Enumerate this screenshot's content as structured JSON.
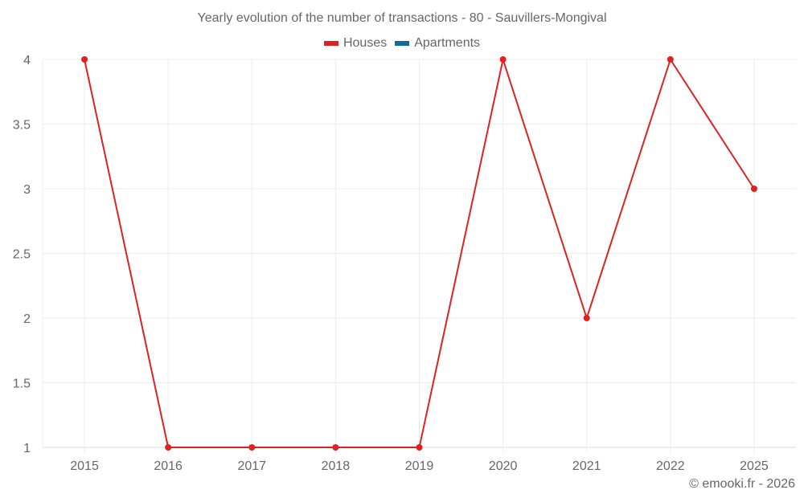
{
  "title": "Yearly evolution of the number of transactions - 80 - Sauvillers-Mongival",
  "legend": [
    {
      "label": "Houses",
      "color": "#dd2222"
    },
    {
      "label": "Apartments",
      "color": "#0f6ca3"
    }
  ],
  "footer": "© emooki.fr - 2026",
  "chart_data": {
    "type": "line",
    "title": "Yearly evolution of the number of transactions - 80 - Sauvillers-Mongival",
    "xlabel": "",
    "ylabel": "",
    "categories": [
      "2015",
      "2016",
      "2017",
      "2018",
      "2019",
      "2020",
      "2021",
      "2022",
      "2025"
    ],
    "series": [
      {
        "name": "Houses",
        "color": "#dd2222",
        "values": [
          4,
          1,
          1,
          1,
          1,
          4,
          2,
          4,
          3
        ]
      },
      {
        "name": "Apartments",
        "color": "#0f6ca3",
        "values": []
      }
    ],
    "yticks": [
      "1",
      "1.5",
      "2",
      "2.5",
      "3",
      "3.5",
      "4"
    ],
    "ylim": [
      1,
      4
    ],
    "grid": true,
    "legend_position": "top"
  }
}
